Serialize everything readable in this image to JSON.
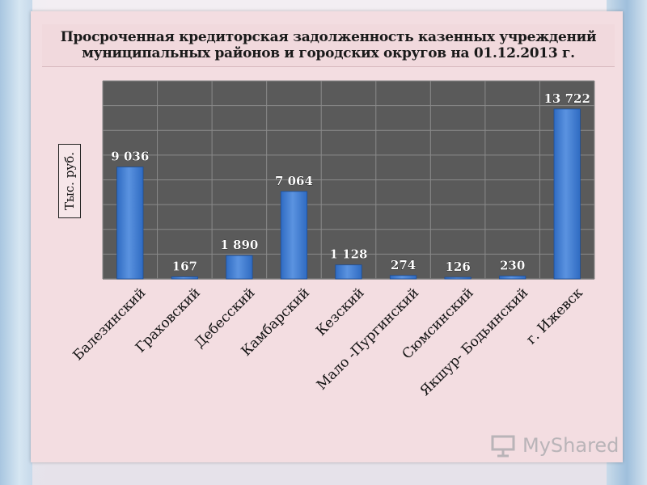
{
  "title_line1": "Просроченная кредиторская задолженность казенных учреждений",
  "title_line2": "муниципальных районов и городских округов на 01.12.2013 г.",
  "ylabel": "Тыс. руб.",
  "watermark": "MyShared",
  "colors": {
    "bar": "#2f6bc2",
    "bar_light": "#5b93e0",
    "plot_bg": "#5a5a5a",
    "grid": "#ffffff"
  },
  "chart_data": {
    "type": "bar",
    "categories": [
      "Балезинский",
      "Граховский",
      "Дебесский",
      "Камбарский",
      "Кезский",
      "Мало -Пургинский",
      "Сюмсинский",
      "Якшур- Бодьинский",
      "г. Ижевск"
    ],
    "values": [
      9036,
      167,
      1890,
      7064,
      1128,
      274,
      126,
      230,
      13722
    ],
    "value_labels": [
      "9 036",
      "167",
      "1 890",
      "7 064",
      "1 128",
      "274",
      "126",
      "230",
      "13 722"
    ],
    "ylabel": "Тыс. руб.",
    "ylim": [
      0,
      16000
    ],
    "grid": true
  }
}
